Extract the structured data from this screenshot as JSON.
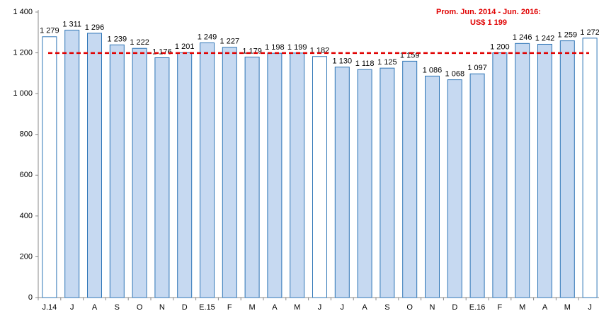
{
  "chart_data": {
    "type": "bar",
    "categories": [
      "J.14",
      "J",
      "A",
      "S",
      "O",
      "N",
      "D",
      "E.15",
      "F",
      "M",
      "A",
      "M",
      "J",
      "J",
      "A",
      "S",
      "O",
      "N",
      "D",
      "E.16",
      "F",
      "M",
      "A",
      "M",
      "J"
    ],
    "values": [
      1279,
      1311,
      1296,
      1239,
      1222,
      1176,
      1201,
      1249,
      1227,
      1179,
      1198,
      1199,
      1182,
      1130,
      1118,
      1125,
      1159,
      1086,
      1068,
      1097,
      1200,
      1246,
      1242,
      1259,
      1272
    ],
    "value_labels": [
      "1 279",
      "1 311",
      "1 296",
      "1 239",
      "1 222",
      "1 176",
      "1 201",
      "1 249",
      "1 227",
      "1 179",
      "1 198",
      "1 199",
      "1 182",
      "1 130",
      "1 118",
      "1 125",
      "1 159",
      "1 086",
      "1 068",
      "1 097",
      "1 200",
      "1 246",
      "1 242",
      "1 259",
      "1 272"
    ],
    "colors": [
      "#ffffff",
      "#c6d9f1",
      "#c6d9f1",
      "#c6d9f1",
      "#c6d9f1",
      "#c6d9f1",
      "#c6d9f1",
      "#c6d9f1",
      "#c6d9f1",
      "#c6d9f1",
      "#c6d9f1",
      "#c6d9f1",
      "#ffffff",
      "#c6d9f1",
      "#c6d9f1",
      "#c6d9f1",
      "#c6d9f1",
      "#c6d9f1",
      "#c6d9f1",
      "#c6d9f1",
      "#c6d9f1",
      "#c6d9f1",
      "#c6d9f1",
      "#c6d9f1",
      "#ffffff"
    ],
    "edge_color": "#2e75b6",
    "ylim": [
      0,
      1400
    ],
    "yticks": [
      0,
      200,
      400,
      600,
      800,
      {
        "value": 1000,
        "label": "1 000"
      },
      {
        "value": 1200,
        "label": "1 200"
      },
      {
        "value": 1400,
        "label": "1 400"
      }
    ],
    "reference": {
      "value": 1199,
      "color": "#e00000",
      "label": [
        "Prom.  Jun. 2014 - Jun. 2016:",
        "US$ 1 199"
      ]
    }
  }
}
